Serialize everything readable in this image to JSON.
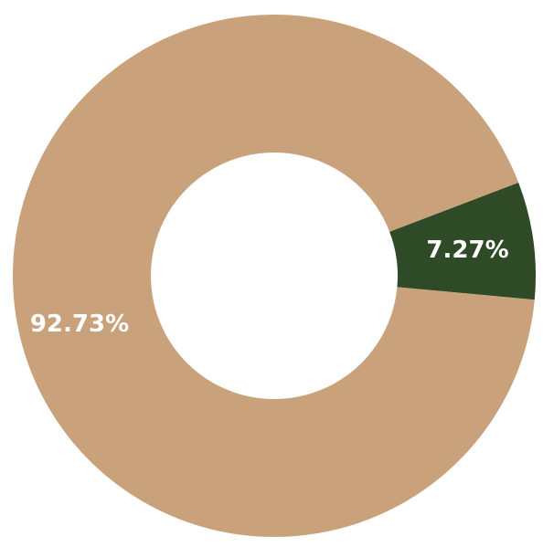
{
  "chart_data": {
    "type": "pie",
    "variant": "donut",
    "title": "",
    "legend": "none",
    "categories": [
      "",
      ""
    ],
    "values": [
      7.27,
      92.73
    ],
    "labels": [
      "7.27%",
      "92.73%"
    ],
    "colors": [
      "#2f4a26",
      "#c9a27c"
    ],
    "label_color": "#ffffff",
    "background": "#ffffff"
  }
}
